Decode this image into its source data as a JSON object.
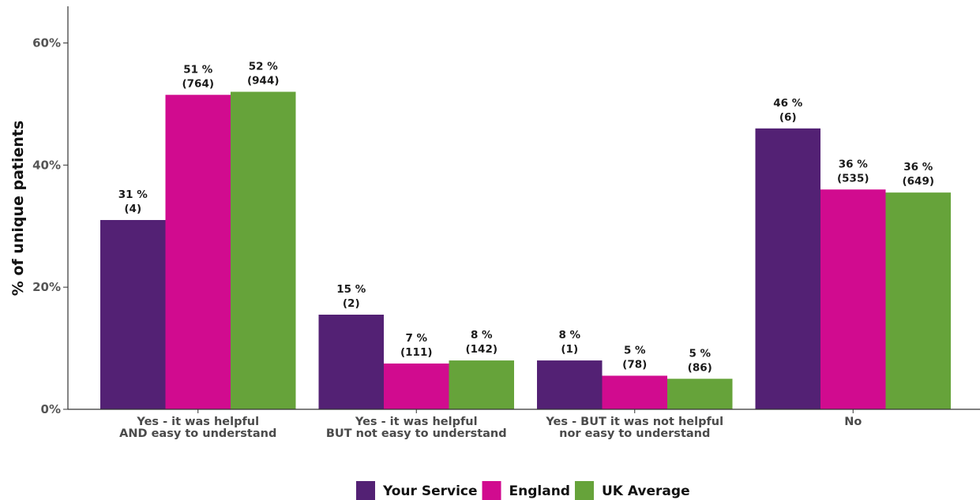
{
  "chart_data": {
    "type": "bar",
    "ylabel": "% of unique patients",
    "ylim": [
      0,
      66
    ],
    "yticks": [
      0,
      20,
      40,
      60
    ],
    "ytick_labels": [
      "0%",
      "20%",
      "40%",
      "60%"
    ],
    "grid": false,
    "legend_position": "bottom",
    "categories": [
      [
        "Yes - it was helpful",
        "AND easy to understand"
      ],
      [
        "Yes - it was helpful",
        "BUT not easy to understand"
      ],
      [
        "Yes - BUT it was not helpful",
        "nor easy to understand"
      ],
      [
        "No"
      ]
    ],
    "series": [
      {
        "name": "Your Service",
        "color": "#532174",
        "values": [
          31,
          15.5,
          8,
          46
        ],
        "labels": [
          "31 %",
          "15 %",
          "8 %",
          "46 %"
        ],
        "counts": [
          "(4)",
          "(2)",
          "(1)",
          "(6)"
        ]
      },
      {
        "name": "England",
        "color": "#d10b8f",
        "values": [
          51.5,
          7.5,
          5.5,
          36
        ],
        "labels": [
          "51 %",
          "7 %",
          "5 %",
          "36 %"
        ],
        "counts": [
          "(764)",
          "(111)",
          "(78)",
          "(535)"
        ]
      },
      {
        "name": "UK Average",
        "color": "#66a33a",
        "values": [
          52,
          8,
          5,
          35.5
        ],
        "labels": [
          "52 %",
          "8 %",
          "5 %",
          "36 %"
        ],
        "counts": [
          "(944)",
          "(142)",
          "(86)",
          "(649)"
        ]
      }
    ]
  }
}
